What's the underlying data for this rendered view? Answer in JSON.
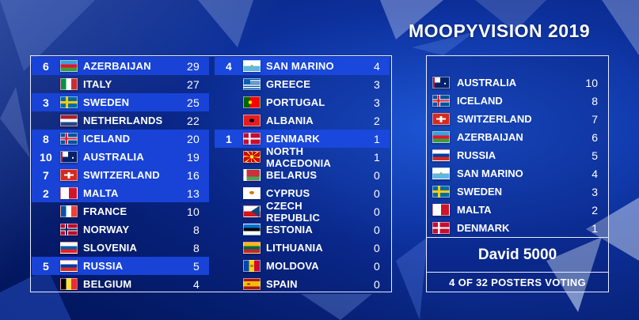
{
  "title": "MOOPYVISION 2019",
  "scoreboard": {
    "left": [
      {
        "rank": "6",
        "country": "AZERBAIJAN",
        "score": "29",
        "flag": "azerbaijan",
        "highlight": true
      },
      {
        "rank": "",
        "country": "ITALY",
        "score": "27",
        "flag": "italy",
        "highlight": false
      },
      {
        "rank": "3",
        "country": "SWEDEN",
        "score": "25",
        "flag": "sweden",
        "highlight": true
      },
      {
        "rank": "",
        "country": "NETHERLANDS",
        "score": "22",
        "flag": "netherlands",
        "highlight": false
      },
      {
        "rank": "8",
        "country": "ICELAND",
        "score": "20",
        "flag": "iceland",
        "highlight": true
      },
      {
        "rank": "10",
        "country": "AUSTRALIA",
        "score": "19",
        "flag": "australia",
        "highlight": true
      },
      {
        "rank": "7",
        "country": "SWITZERLAND",
        "score": "16",
        "flag": "switzerland",
        "highlight": true
      },
      {
        "rank": "2",
        "country": "MALTA",
        "score": "13",
        "flag": "malta",
        "highlight": true
      },
      {
        "rank": "",
        "country": "FRANCE",
        "score": "10",
        "flag": "france",
        "highlight": false
      },
      {
        "rank": "",
        "country": "NORWAY",
        "score": "8",
        "flag": "norway",
        "highlight": false
      },
      {
        "rank": "",
        "country": "SLOVENIA",
        "score": "8",
        "flag": "slovenia",
        "highlight": false
      },
      {
        "rank": "5",
        "country": "RUSSIA",
        "score": "5",
        "flag": "russia",
        "highlight": true
      },
      {
        "rank": "",
        "country": "BELGIUM",
        "score": "4",
        "flag": "belgium",
        "highlight": false
      }
    ],
    "middle": [
      {
        "rank": "4",
        "country": "SAN MARINO",
        "score": "4",
        "flag": "san-marino",
        "highlight": true
      },
      {
        "rank": "",
        "country": "GREECE",
        "score": "3",
        "flag": "greece",
        "highlight": false
      },
      {
        "rank": "",
        "country": "PORTUGAL",
        "score": "3",
        "flag": "portugal",
        "highlight": false
      },
      {
        "rank": "",
        "country": "ALBANIA",
        "score": "2",
        "flag": "albania",
        "highlight": false
      },
      {
        "rank": "1",
        "country": "DENMARK",
        "score": "1",
        "flag": "denmark",
        "highlight": true
      },
      {
        "rank": "",
        "country": "NORTH MACEDONIA",
        "score": "1",
        "flag": "north-macedonia",
        "highlight": false
      },
      {
        "rank": "",
        "country": "BELARUS",
        "score": "0",
        "flag": "belarus",
        "highlight": false
      },
      {
        "rank": "",
        "country": "CYPRUS",
        "score": "0",
        "flag": "cyprus",
        "highlight": false
      },
      {
        "rank": "",
        "country": "CZECH REPUBLIC",
        "score": "0",
        "flag": "czech-republic",
        "highlight": false
      },
      {
        "rank": "",
        "country": "ESTONIA",
        "score": "0",
        "flag": "estonia",
        "highlight": false
      },
      {
        "rank": "",
        "country": "LITHUANIA",
        "score": "0",
        "flag": "lithuania",
        "highlight": false
      },
      {
        "rank": "",
        "country": "MOLDOVA",
        "score": "0",
        "flag": "moldova",
        "highlight": false
      },
      {
        "rank": "",
        "country": "SPAIN",
        "score": "0",
        "flag": "spain",
        "highlight": false
      }
    ]
  },
  "voting_panel": {
    "points": [
      {
        "country": "AUSTRALIA",
        "score": "10",
        "flag": "australia"
      },
      {
        "country": "ICELAND",
        "score": "8",
        "flag": "iceland"
      },
      {
        "country": "SWITZERLAND",
        "score": "7",
        "flag": "switzerland"
      },
      {
        "country": "AZERBAIJAN",
        "score": "6",
        "flag": "azerbaijan"
      },
      {
        "country": "RUSSIA",
        "score": "5",
        "flag": "russia"
      },
      {
        "country": "SAN MARINO",
        "score": "4",
        "flag": "san-marino"
      },
      {
        "country": "SWEDEN",
        "score": "3",
        "flag": "sweden"
      },
      {
        "country": "MALTA",
        "score": "2",
        "flag": "malta"
      },
      {
        "country": "DENMARK",
        "score": "1",
        "flag": "denmark"
      }
    ],
    "voter": "David 5000",
    "status": "4 OF 32 POSTERS VOTING"
  },
  "colors": {
    "highlight_row": "#1843d6",
    "border": "#e8eefc",
    "background": "#0c2f9a"
  }
}
